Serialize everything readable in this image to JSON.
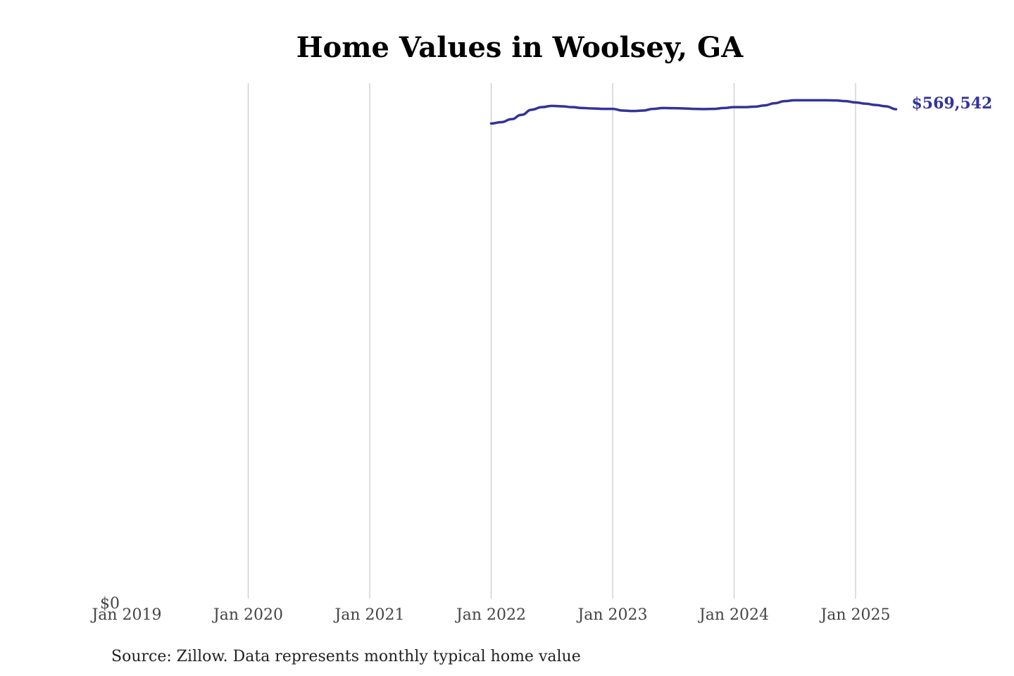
{
  "chart_data": {
    "type": "line",
    "title": "Home Values in Woolsey, GA",
    "xlabel": "",
    "ylabel": "",
    "x_ticks": [
      "Jan 2019",
      "Jan 2020",
      "Jan 2021",
      "Jan 2022",
      "Jan 2023",
      "Jan 2024",
      "Jan 2025"
    ],
    "y_ticks": [
      "$0"
    ],
    "ylim": [
      0,
      600000
    ],
    "grid": "vertical",
    "series": [
      {
        "color": "#333399",
        "x": [
          "2022-01",
          "2022-02",
          "2022-03",
          "2022-04",
          "2022-05",
          "2022-06",
          "2022-07",
          "2022-08",
          "2022-09",
          "2022-10",
          "2022-11",
          "2022-12",
          "2023-01",
          "2023-02",
          "2023-03",
          "2023-04",
          "2023-05",
          "2023-06",
          "2023-07",
          "2023-08",
          "2023-09",
          "2023-10",
          "2023-11",
          "2023-12",
          "2024-01",
          "2024-02",
          "2024-03",
          "2024-04",
          "2024-05",
          "2024-06",
          "2024-07",
          "2024-08",
          "2024-09",
          "2024-10",
          "2024-11",
          "2024-12",
          "2025-01",
          "2025-02",
          "2025-03",
          "2025-04",
          "2025-05"
        ],
        "values": [
          553000,
          554500,
          558000,
          563000,
          569000,
          572000,
          573500,
          573000,
          572000,
          571000,
          570500,
          570000,
          570000,
          568000,
          567500,
          568000,
          570000,
          571000,
          570800,
          570500,
          570000,
          569800,
          570000,
          571000,
          572000,
          572000,
          572500,
          574000,
          576500,
          579000,
          580000,
          580000,
          580000,
          580000,
          579800,
          579000,
          577500,
          576000,
          574500,
          573000,
          569542
        ]
      }
    ],
    "end_label": "$569,542"
  },
  "source": "Source: Zillow. Data represents monthly typical home value"
}
